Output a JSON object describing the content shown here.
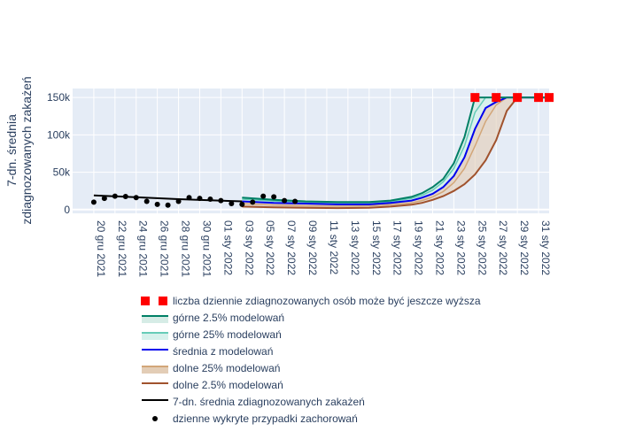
{
  "chart_data": {
    "type": "line",
    "title": "",
    "ylabel": "7-dn. średnia\nzdiagnozowanych zakażeń",
    "xlabel": "",
    "x_range": [
      "2021-12-18",
      "2022-02-01"
    ],
    "ylim": [
      -5000,
      162000
    ],
    "grid": true,
    "legend_position": "bottom",
    "y_ticks": [
      {
        "value": 0,
        "label": "0"
      },
      {
        "value": 50000,
        "label": "50k"
      },
      {
        "value": 100000,
        "label": "100k"
      },
      {
        "value": 150000,
        "label": "150k"
      }
    ],
    "x_ticks": [
      {
        "date": "2021-12-20",
        "label": "20 gru 2021"
      },
      {
        "date": "2021-12-22",
        "label": "22 gru 2021"
      },
      {
        "date": "2021-12-24",
        "label": "24 gru 2021"
      },
      {
        "date": "2021-12-26",
        "label": "26 gru 2021"
      },
      {
        "date": "2021-12-28",
        "label": "28 gru 2021"
      },
      {
        "date": "2021-12-30",
        "label": "30 gru 2021"
      },
      {
        "date": "2022-01-01",
        "label": "01 sty 2022"
      },
      {
        "date": "2022-01-03",
        "label": "03 sty 2022"
      },
      {
        "date": "2022-01-05",
        "label": "05 sty 2022"
      },
      {
        "date": "2022-01-07",
        "label": "07 sty 2022"
      },
      {
        "date": "2022-01-09",
        "label": "09 sty 2022"
      },
      {
        "date": "2022-01-11",
        "label": "11 sty 2022"
      },
      {
        "date": "2022-01-13",
        "label": "13 sty 2022"
      },
      {
        "date": "2022-01-15",
        "label": "15 sty 2022"
      },
      {
        "date": "2022-01-17",
        "label": "17 sty 2022"
      },
      {
        "date": "2022-01-19",
        "label": "19 sty 2022"
      },
      {
        "date": "2022-01-21",
        "label": "21 sty 2022"
      },
      {
        "date": "2022-01-23",
        "label": "23 sty 2022"
      },
      {
        "date": "2022-01-25",
        "label": "25 sty 2022"
      },
      {
        "date": "2022-01-27",
        "label": "27 sty 2022"
      },
      {
        "date": "2022-01-29",
        "label": "29 sty 2022"
      },
      {
        "date": "2022-01-31",
        "label": "31 sty 2022"
      }
    ],
    "legend": [
      {
        "key": "underreport",
        "label": "liczba dziennie zdiagnozowanych osób może być jeszcze wyższa",
        "style": "marker",
        "color": "#ff0000"
      },
      {
        "key": "upper95",
        "label": "górne 2.5% modelowań",
        "style": "line-fill",
        "color": "#008066",
        "fill": "#d6ece6"
      },
      {
        "key": "upper75",
        "label": "górne 25% modelowań",
        "style": "line-fill",
        "color": "#66ccb8",
        "fill": "#d6f1ec"
      },
      {
        "key": "mean",
        "label": "średnia z modelowań",
        "style": "line",
        "color": "#0000ee"
      },
      {
        "key": "lower25",
        "label": "dolne 25% modelowań",
        "style": "line-fill",
        "color": "#d2a679",
        "fill": "#e3cdb6"
      },
      {
        "key": "lower025",
        "label": "dolne 2.5% modelowań",
        "style": "line",
        "color": "#a0522d"
      },
      {
        "key": "avg7",
        "label": "7-dn. średnia zdiagnozowanych zakażeń",
        "style": "line",
        "color": "#000000"
      },
      {
        "key": "daily",
        "label": "dzienne wykryte przypadki zachorowań",
        "style": "dot",
        "color": "#000000"
      }
    ],
    "series": [
      {
        "key": "daily",
        "points": [
          [
            "2021-12-20",
            10000
          ],
          [
            "2021-12-21",
            15000
          ],
          [
            "2021-12-22",
            18000
          ],
          [
            "2021-12-23",
            17500
          ],
          [
            "2021-12-24",
            16000
          ],
          [
            "2021-12-25",
            11000
          ],
          [
            "2021-12-26",
            7000
          ],
          [
            "2021-12-27",
            6000
          ],
          [
            "2021-12-28",
            11000
          ],
          [
            "2021-12-29",
            16000
          ],
          [
            "2021-12-30",
            15000
          ],
          [
            "2021-12-31",
            14000
          ],
          [
            "2022-01-01",
            12000
          ],
          [
            "2022-01-02",
            8000
          ],
          [
            "2022-01-03",
            7000
          ],
          [
            "2022-01-04",
            10000
          ],
          [
            "2022-01-05",
            18000
          ],
          [
            "2022-01-06",
            17000
          ],
          [
            "2022-01-07",
            12000
          ],
          [
            "2022-01-08",
            11000
          ]
        ]
      },
      {
        "key": "avg7",
        "points": [
          [
            "2021-12-20",
            19000
          ],
          [
            "2021-12-28",
            14000
          ],
          [
            "2022-01-03",
            11000
          ]
        ]
      },
      {
        "key": "upper95",
        "points": [
          [
            "2022-01-03",
            16000
          ],
          [
            "2022-01-06",
            13000
          ],
          [
            "2022-01-09",
            11000
          ],
          [
            "2022-01-12",
            10000
          ],
          [
            "2022-01-15",
            10000
          ],
          [
            "2022-01-17",
            12000
          ],
          [
            "2022-01-19",
            17000
          ],
          [
            "2022-01-20",
            22000
          ],
          [
            "2022-01-21",
            30000
          ],
          [
            "2022-01-22",
            41000
          ],
          [
            "2022-01-23",
            62000
          ],
          [
            "2022-01-24",
            97000
          ],
          [
            "2022-01-25",
            150000
          ],
          [
            "2022-02-01",
            150000
          ]
        ]
      },
      {
        "key": "upper75",
        "points": [
          [
            "2022-01-03",
            14000
          ],
          [
            "2022-01-06",
            11500
          ],
          [
            "2022-01-09",
            10000
          ],
          [
            "2022-01-12",
            9000
          ],
          [
            "2022-01-15",
            9000
          ],
          [
            "2022-01-17",
            10500
          ],
          [
            "2022-01-19",
            15000
          ],
          [
            "2022-01-20",
            19000
          ],
          [
            "2022-01-21",
            26000
          ],
          [
            "2022-01-22",
            37000
          ],
          [
            "2022-01-23",
            55000
          ],
          [
            "2022-01-24",
            85000
          ],
          [
            "2022-01-25",
            130000
          ],
          [
            "2022-01-26",
            150000
          ],
          [
            "2022-02-01",
            150000
          ]
        ]
      },
      {
        "key": "mean",
        "points": [
          [
            "2022-01-03",
            11000
          ],
          [
            "2022-01-06",
            9000
          ],
          [
            "2022-01-09",
            8000
          ],
          [
            "2022-01-12",
            7000
          ],
          [
            "2022-01-15",
            7000
          ],
          [
            "2022-01-17",
            9000
          ],
          [
            "2022-01-19",
            12000
          ],
          [
            "2022-01-20",
            16000
          ],
          [
            "2022-01-21",
            21000
          ],
          [
            "2022-01-22",
            30000
          ],
          [
            "2022-01-23",
            45000
          ],
          [
            "2022-01-24",
            70000
          ],
          [
            "2022-01-25",
            108000
          ],
          [
            "2022-01-26",
            136000
          ],
          [
            "2022-01-27",
            144000
          ],
          [
            "2022-01-28",
            150000
          ],
          [
            "2022-02-01",
            150000
          ]
        ]
      },
      {
        "key": "lower25",
        "points": [
          [
            "2022-01-03",
            8000
          ],
          [
            "2022-01-06",
            6000
          ],
          [
            "2022-01-09",
            5000
          ],
          [
            "2022-01-12",
            4500
          ],
          [
            "2022-01-15",
            5000
          ],
          [
            "2022-01-17",
            6500
          ],
          [
            "2022-01-19",
            9000
          ],
          [
            "2022-01-20",
            12000
          ],
          [
            "2022-01-21",
            17000
          ],
          [
            "2022-01-22",
            24000
          ],
          [
            "2022-01-23",
            36000
          ],
          [
            "2022-01-24",
            55000
          ],
          [
            "2022-01-25",
            85000
          ],
          [
            "2022-01-26",
            118000
          ],
          [
            "2022-01-27",
            140000
          ],
          [
            "2022-01-28",
            150000
          ],
          [
            "2022-02-01",
            150000
          ]
        ]
      },
      {
        "key": "lower025",
        "points": [
          [
            "2022-01-03",
            4000
          ],
          [
            "2022-01-06",
            3000
          ],
          [
            "2022-01-09",
            2500
          ],
          [
            "2022-01-12",
            2000
          ],
          [
            "2022-01-15",
            2500
          ],
          [
            "2022-01-17",
            4000
          ],
          [
            "2022-01-19",
            6500
          ],
          [
            "2022-01-20",
            9000
          ],
          [
            "2022-01-21",
            13000
          ],
          [
            "2022-01-22",
            18000
          ],
          [
            "2022-01-23",
            25000
          ],
          [
            "2022-01-24",
            34000
          ],
          [
            "2022-01-25",
            47000
          ],
          [
            "2022-01-26",
            66000
          ],
          [
            "2022-01-27",
            93000
          ],
          [
            "2022-01-28",
            132000
          ],
          [
            "2022-01-29",
            150000
          ],
          [
            "2022-02-01",
            150000
          ]
        ]
      },
      {
        "key": "underreport",
        "points": [
          [
            "2022-01-25",
            150000
          ],
          [
            "2022-01-27",
            150000
          ],
          [
            "2022-01-29",
            150000
          ],
          [
            "2022-01-31",
            150000
          ],
          [
            "2022-02-01",
            150000
          ]
        ]
      }
    ]
  }
}
